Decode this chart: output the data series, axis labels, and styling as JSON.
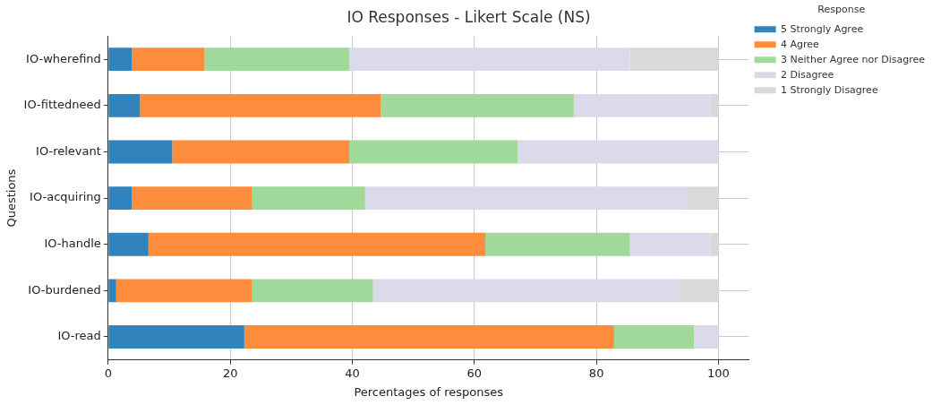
{
  "chart_data": {
    "type": "bar",
    "orientation": "horizontal",
    "stacked": true,
    "title": "IO Responses - Likert Scale (NS)",
    "xlabel": "Percentages of responses",
    "ylabel": "Questions",
    "legend_title": "Response",
    "legend": "top right",
    "grid": true,
    "categories": [
      "IO-wherefind",
      "IO-fittedneed",
      "IO-relevant",
      "IO-acquiring",
      "IO-handle",
      "IO-burdened",
      "IO-read"
    ],
    "xlim": [
      0,
      105
    ],
    "xticks": [
      0,
      20,
      40,
      60,
      80,
      100
    ],
    "series": [
      {
        "name": "5 Strongly Agree",
        "color": "#3182bd",
        "values": [
          3.9,
          5.2,
          10.5,
          3.9,
          6.6,
          1.3,
          22.3
        ]
      },
      {
        "name": "4 Agree",
        "color": "#fd8d3c",
        "values": [
          11.9,
          39.5,
          29.0,
          19.7,
          55.2,
          22.3,
          60.6
        ]
      },
      {
        "name": "3 Neither Agree nor Disagree",
        "color": "#a1d99b",
        "values": [
          23.7,
          31.6,
          27.6,
          18.5,
          23.7,
          19.8,
          13.1
        ]
      },
      {
        "name": "2 Disagree",
        "color": "#dadaeb",
        "values": [
          46.0,
          22.4,
          32.9,
          52.7,
          13.2,
          50.1,
          4.0
        ]
      },
      {
        "name": "1 Strongly Disagree",
        "color": "#d9d9d9",
        "values": [
          14.5,
          1.3,
          0,
          5.2,
          1.3,
          6.5,
          0
        ]
      }
    ]
  }
}
